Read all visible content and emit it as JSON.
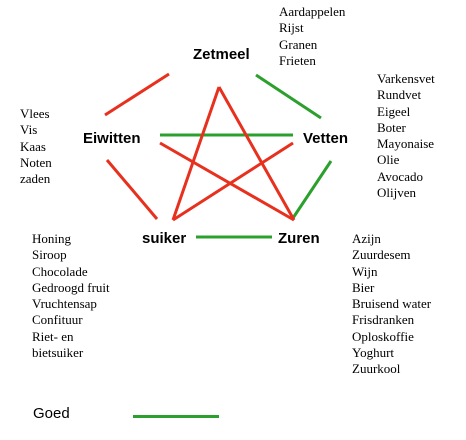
{
  "nodes": {
    "zetmeel": "Zetmeel",
    "eiwitten": "Eiwitten",
    "vetten": "Vetten",
    "suiker": "suiker",
    "zuren": "Zuren"
  },
  "lists": {
    "zetmeel": [
      "Aardappelen",
      "Rijst",
      "Granen",
      "Frieten"
    ],
    "eiwitten": [
      "Vlees",
      "Vis",
      "Kaas",
      "Noten",
      "zaden"
    ],
    "vetten": [
      "Varkensvet",
      "Rundvet",
      "Eigeel",
      "Boter",
      "Mayonaise",
      "Olie",
      "Avocado",
      "Olijven"
    ],
    "suiker": [
      "Honing",
      "Siroop",
      "Chocolade",
      "Gedroogd fruit",
      "Vruchtensap",
      "Confituur",
      "Riet- en",
      "bietsuiker"
    ],
    "zuren": [
      "Azijn",
      "Zuurdesem",
      "Wijn",
      "Bier",
      "Bruisend water",
      "Frisdranken",
      "Oploskoffie",
      "Yoghurt",
      "Zuurkool"
    ]
  },
  "legend": {
    "label": "Goed",
    "color": "#2ca02c"
  },
  "connections": [
    {
      "from": "eiwitten",
      "to": "zetmeel",
      "quality": "bad"
    },
    {
      "from": "zetmeel",
      "to": "vetten",
      "quality": "good"
    },
    {
      "from": "vetten",
      "to": "zuren",
      "quality": "good"
    },
    {
      "from": "zuren",
      "to": "suiker",
      "quality": "good"
    },
    {
      "from": "suiker",
      "to": "eiwitten",
      "quality": "bad"
    },
    {
      "from": "eiwitten",
      "to": "vetten",
      "quality": "good"
    },
    {
      "from": "eiwitten",
      "to": "zuren",
      "quality": "bad"
    },
    {
      "from": "zetmeel",
      "to": "suiker",
      "quality": "bad"
    },
    {
      "from": "zetmeel",
      "to": "zuren",
      "quality": "bad"
    },
    {
      "from": "vetten",
      "to": "suiker",
      "quality": "bad"
    }
  ],
  "colors": {
    "good": "#2ca02c",
    "bad": "#e8301e"
  }
}
